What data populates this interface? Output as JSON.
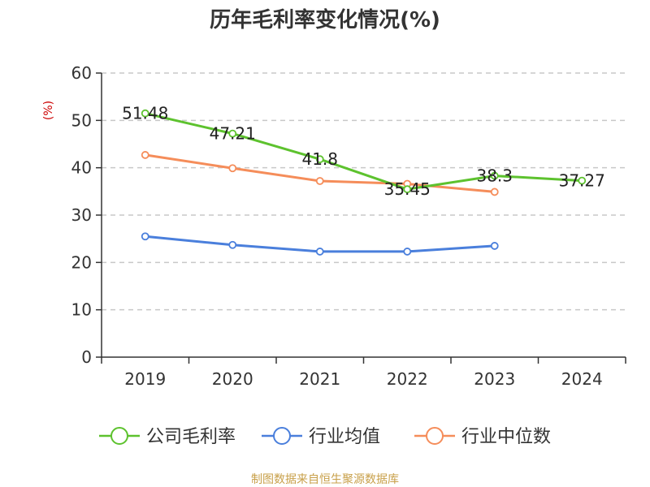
{
  "title": "历年毛利率变化情况(%)",
  "unit_label": "(%)",
  "source": "制图数据来自恒生聚源数据库",
  "chart_data": {
    "type": "line",
    "title": "历年毛利率变化情况(%)",
    "ylabel": "(%)",
    "xlabel": "",
    "ylim": [
      0,
      60
    ],
    "yticks": [
      0,
      10,
      20,
      30,
      40,
      50,
      60
    ],
    "categories": [
      "2019",
      "2020",
      "2021",
      "2022",
      "2023",
      "2024"
    ],
    "grid": true,
    "legend_position": "bottom",
    "series": [
      {
        "name": "公司毛利率",
        "color": "#5dc22e",
        "values": [
          51.48,
          47.21,
          41.8,
          35.45,
          38.3,
          37.27
        ],
        "labels": [
          "51.48",
          "47.21",
          "41.8",
          "35.45",
          "38.3",
          "37.27"
        ]
      },
      {
        "name": "行业均值",
        "color": "#4a7fdc",
        "values": [
          25.5,
          23.7,
          22.3,
          22.3,
          23.5,
          null
        ]
      },
      {
        "name": "行业中位数",
        "color": "#f58d5a",
        "values": [
          42.7,
          39.9,
          37.2,
          36.6,
          34.9,
          null
        ]
      }
    ]
  }
}
